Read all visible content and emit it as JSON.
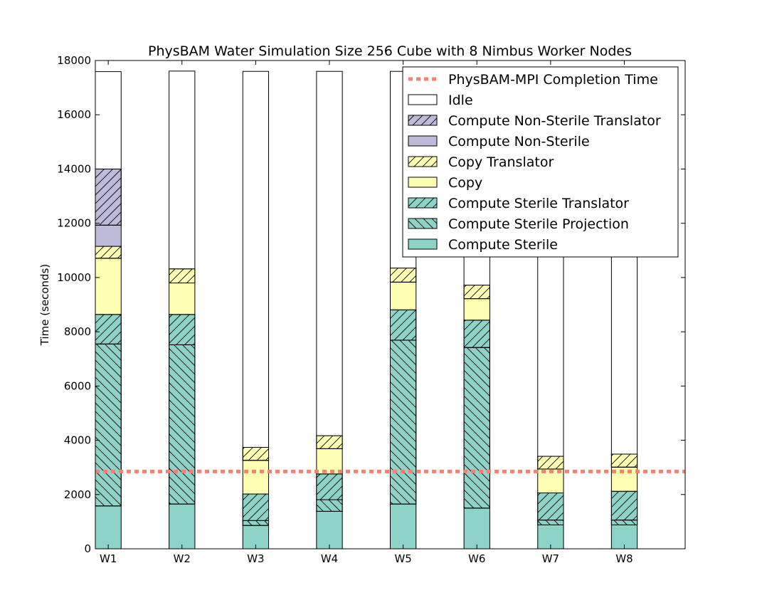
{
  "chart_data": {
    "type": "bar",
    "stacked": true,
    "title": "PhysBAM Water Simulation Size 256 Cube with 8 Nimbus Worker Nodes",
    "xlabel": "",
    "ylabel": "Time (seconds)",
    "ylim": [
      0,
      18000
    ],
    "yticks": [
      0,
      2000,
      4000,
      6000,
      8000,
      10000,
      12000,
      14000,
      16000,
      18000
    ],
    "categories": [
      "W1",
      "W2",
      "W3",
      "W4",
      "W5",
      "W6",
      "W7",
      "W8"
    ],
    "grid": false,
    "legend_position": "top-right",
    "series": [
      {
        "name": "Compute Sterile",
        "color": "#8dd3c7",
        "hatch": "none",
        "values": [
          1580,
          1650,
          860,
          1380,
          1650,
          1500,
          880,
          880
        ]
      },
      {
        "name": "Compute Sterile Projection",
        "color": "#8dd3c7",
        "hatch": "backslash",
        "values": [
          5970,
          5870,
          180,
          430,
          6040,
          5920,
          180,
          180
        ]
      },
      {
        "name": "Compute Sterile Translator",
        "color": "#8dd3c7",
        "hatch": "slash",
        "values": [
          1090,
          1120,
          980,
          950,
          1120,
          1010,
          1000,
          1060
        ]
      },
      {
        "name": "Copy",
        "color": "#ffffb3",
        "hatch": "none",
        "values": [
          2070,
          1160,
          1240,
          930,
          1020,
          790,
          880,
          890
        ]
      },
      {
        "name": "Copy Translator",
        "color": "#ffffb3",
        "hatch": "slash",
        "values": [
          440,
          520,
          480,
          480,
          520,
          500,
          470,
          480
        ]
      },
      {
        "name": "Compute Non-Sterile",
        "color": "#bebada",
        "hatch": "none",
        "values": [
          780,
          0,
          0,
          0,
          0,
          0,
          0,
          0
        ]
      },
      {
        "name": "Compute Non-Sterile Translator",
        "color": "#bebada",
        "hatch": "slash",
        "values": [
          2070,
          0,
          0,
          0,
          0,
          0,
          0,
          0
        ]
      },
      {
        "name": "Idle",
        "color": "#ffffff",
        "hatch": "none",
        "values": [
          3590,
          7290,
          13860,
          13430,
          7250,
          7880,
          14190,
          14110
        ]
      }
    ],
    "reference_line": {
      "name": "PhysBAM-MPI Completion Time",
      "value": 2850,
      "color": "#fa8072",
      "style": "dotted"
    }
  }
}
